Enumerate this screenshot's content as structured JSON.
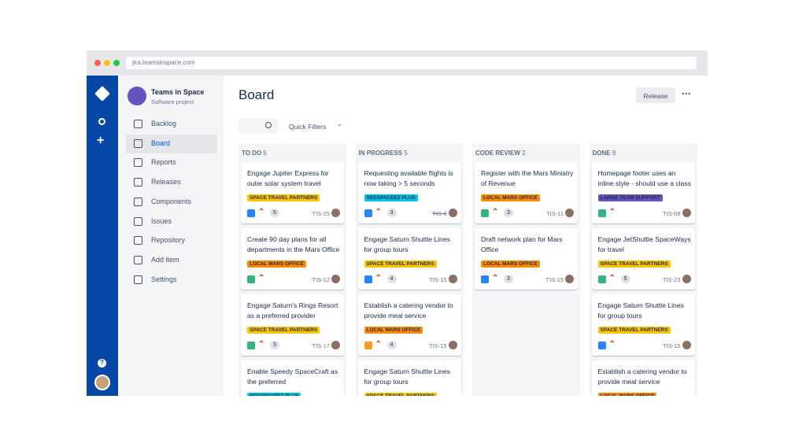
{
  "browser": {
    "url": "jira.teamsinspace.com"
  },
  "project": {
    "name": "Teams in Space",
    "type": "Software project"
  },
  "nav": [
    "Backlog",
    "Board",
    "Reports",
    "Releases",
    "Components",
    "Issues",
    "Repository",
    "Add item",
    "Settings"
  ],
  "active_nav": 1,
  "page": {
    "title": "Board",
    "release_button": "Release",
    "quick_filters": "Quick Filters"
  },
  "columns": [
    {
      "name": "TO DO",
      "count": 5,
      "cards": [
        {
          "title": "Engage Jupiter Express for outer solar system travel",
          "label": "SPACE TRAVEL PARTNERS",
          "label_color": "#ffc400",
          "type_color": "#2684ff",
          "priority_color": "#de350b",
          "points": 5,
          "key": "TIS-25"
        },
        {
          "title": "Create 90 day plans for all departments in the Mars Office",
          "label": "LOCAL MARS OFFICE",
          "label_color": "#ff8b00",
          "type_color": "#36b37e",
          "priority_color": "#de350b",
          "key": "TIS-12"
        },
        {
          "title": "Engage Saturn's Rings Resort as a preferred provider",
          "label": "SPACE TRAVEL PARTNERS",
          "label_color": "#ffc400",
          "type_color": "#36b37e",
          "priority_color": "#de350b",
          "points": 3,
          "key": "TIS-17"
        },
        {
          "title": "Enable Speedy SpaceCraft as the preferred",
          "label": "SEESPACEEZ PLUS",
          "label_color": "#00c7e6",
          "type_color": "#2684ff",
          "priority_color": "#de350b"
        }
      ]
    },
    {
      "name": "IN PROGRESS",
      "count": 5,
      "cards": [
        {
          "title": "Requesting available flights is now taking > 5 seconds",
          "label": "SEESPACEEZ PLUS",
          "label_color": "#00c7e6",
          "type_color": "#2684ff",
          "priority_color": "#de350b",
          "points": 3,
          "key": "TIS-8",
          "key_struck": true
        },
        {
          "title": "Engage Saturn Shuttle Lines for group tours",
          "label": "SPACE TRAVEL PARTNERS",
          "label_color": "#ffc400",
          "type_color": "#2684ff",
          "priority_color": "#de350b",
          "points": 4,
          "key": "TIS-15"
        },
        {
          "title": "Establish a catering vendor to provide meal service",
          "label": "LOCAL MARS OFFICE",
          "label_color": "#ff8b00",
          "type_color": "#ff991f",
          "priority_color": "#de350b",
          "points": 4,
          "key": "TIS-15"
        },
        {
          "title": "Engage Saturn Shuttle Lines for group tours",
          "label": "SPACE TRAVEL PARTNERS",
          "label_color": "#ffc400",
          "type_color": "#2684ff",
          "priority_color": "#de350b"
        }
      ]
    },
    {
      "name": "CODE REVIEW",
      "count": 2,
      "cards": [
        {
          "title": "Register with the Mars Ministry of Revenue",
          "label": "LOCAL MARS OFFICE",
          "label_color": "#ff8b00",
          "type_color": "#36b37e",
          "priority_color": "#de350b",
          "points": 3,
          "key": "TIS-11"
        },
        {
          "title": "Draft network plan for Mars Office",
          "label": "LOCAL MARS OFFICE",
          "label_color": "#ff8b00",
          "type_color": "#2684ff",
          "priority_color": "#de350b",
          "points": 3,
          "key": "TIS-15"
        }
      ]
    },
    {
      "name": "DONE",
      "count": 8,
      "cards": [
        {
          "title": "Homepage footer uses an inline style - should use a class",
          "label": "LARGE TEAM SUPPORT",
          "label_color": "#6554c0",
          "type_color": "#36b37e",
          "priority_color": "#de350b",
          "key": "TIS-68"
        },
        {
          "title": "Engage JetShuttle SpaceWays for travel",
          "label": "SPACE TRAVEL PARTNERS",
          "label_color": "#ffc400",
          "type_color": "#36b37e",
          "priority_color": "#de350b",
          "points": 5,
          "key": "TIS-23"
        },
        {
          "title": "Engage Saturn Shuttle Lines for group tours",
          "label": "SPACE TRAVEL PARTNERS",
          "label_color": "#ffc400",
          "type_color": "#2684ff",
          "priority_color": "#de350b",
          "key": "TIS-15"
        },
        {
          "title": "Establish a catering vendor to provide meal service",
          "label": "LOCAL MARS OFFICE",
          "label_color": "#ff8b00",
          "type_color": "#ff991f",
          "priority_color": "#de350b"
        }
      ]
    }
  ]
}
